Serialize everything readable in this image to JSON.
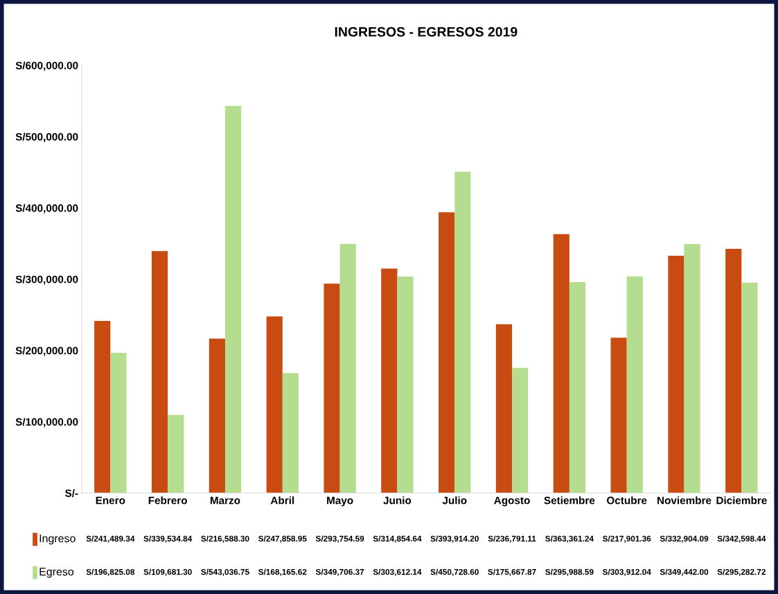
{
  "chart_data": {
    "type": "bar",
    "title": "INGRESOS - EGRESOS 2019",
    "categories": [
      "Enero",
      "Febrero",
      "Marzo",
      "Abril",
      "Mayo",
      "Junio",
      "Julio",
      "Agosto",
      "Setiembre",
      "Octubre",
      "Noviembre",
      "Diciembre"
    ],
    "series": [
      {
        "name": "Ingreso",
        "color": "#c84b11",
        "values": [
          241489.34,
          339534.84,
          216588.3,
          247858.95,
          293754.59,
          314854.64,
          393914.2,
          236791.11,
          363361.24,
          217901.36,
          332904.09,
          342598.44
        ],
        "value_labels": [
          "S/241,489.34",
          "S/339,534.84",
          "S/216,588.30",
          "S/247,858.95",
          "S/293,754.59",
          "S/314,854.64",
          "S/393,914.20",
          "S/236,791.11",
          "S/363,361.24",
          "S/217,901.36",
          "S/332,904.09",
          "S/342,598.44"
        ]
      },
      {
        "name": "Egreso",
        "color": "#b5dd8f",
        "values": [
          196825.08,
          109681.3,
          543036.75,
          168165.62,
          349706.37,
          303612.14,
          450728.6,
          175667.87,
          295988.59,
          303912.04,
          349442.0,
          295282.72
        ],
        "value_labels": [
          "S/196,825.08",
          "S/109,681.30",
          "S/543,036.75",
          "S/168,165.62",
          "S/349,706.37",
          "S/303,612.14",
          "S/450,728.60",
          "S/175,667.87",
          "S/295,988.59",
          "S/303,912.04",
          "S/349,442.00",
          "S/295,282.72"
        ]
      }
    ],
    "ylim": [
      0,
      600000
    ],
    "yticks": [
      {
        "value": 0,
        "label": "S/-"
      },
      {
        "value": 100000,
        "label": "S/100,000.00"
      },
      {
        "value": 200000,
        "label": "S/200,000.00"
      },
      {
        "value": 300000,
        "label": "S/300,000.00"
      },
      {
        "value": 400000,
        "label": "S/400,000.00"
      },
      {
        "value": 500000,
        "label": "S/500,000.00"
      },
      {
        "value": 600000,
        "label": "S/600,000.00"
      }
    ],
    "grid": false,
    "legend": "bottom"
  }
}
